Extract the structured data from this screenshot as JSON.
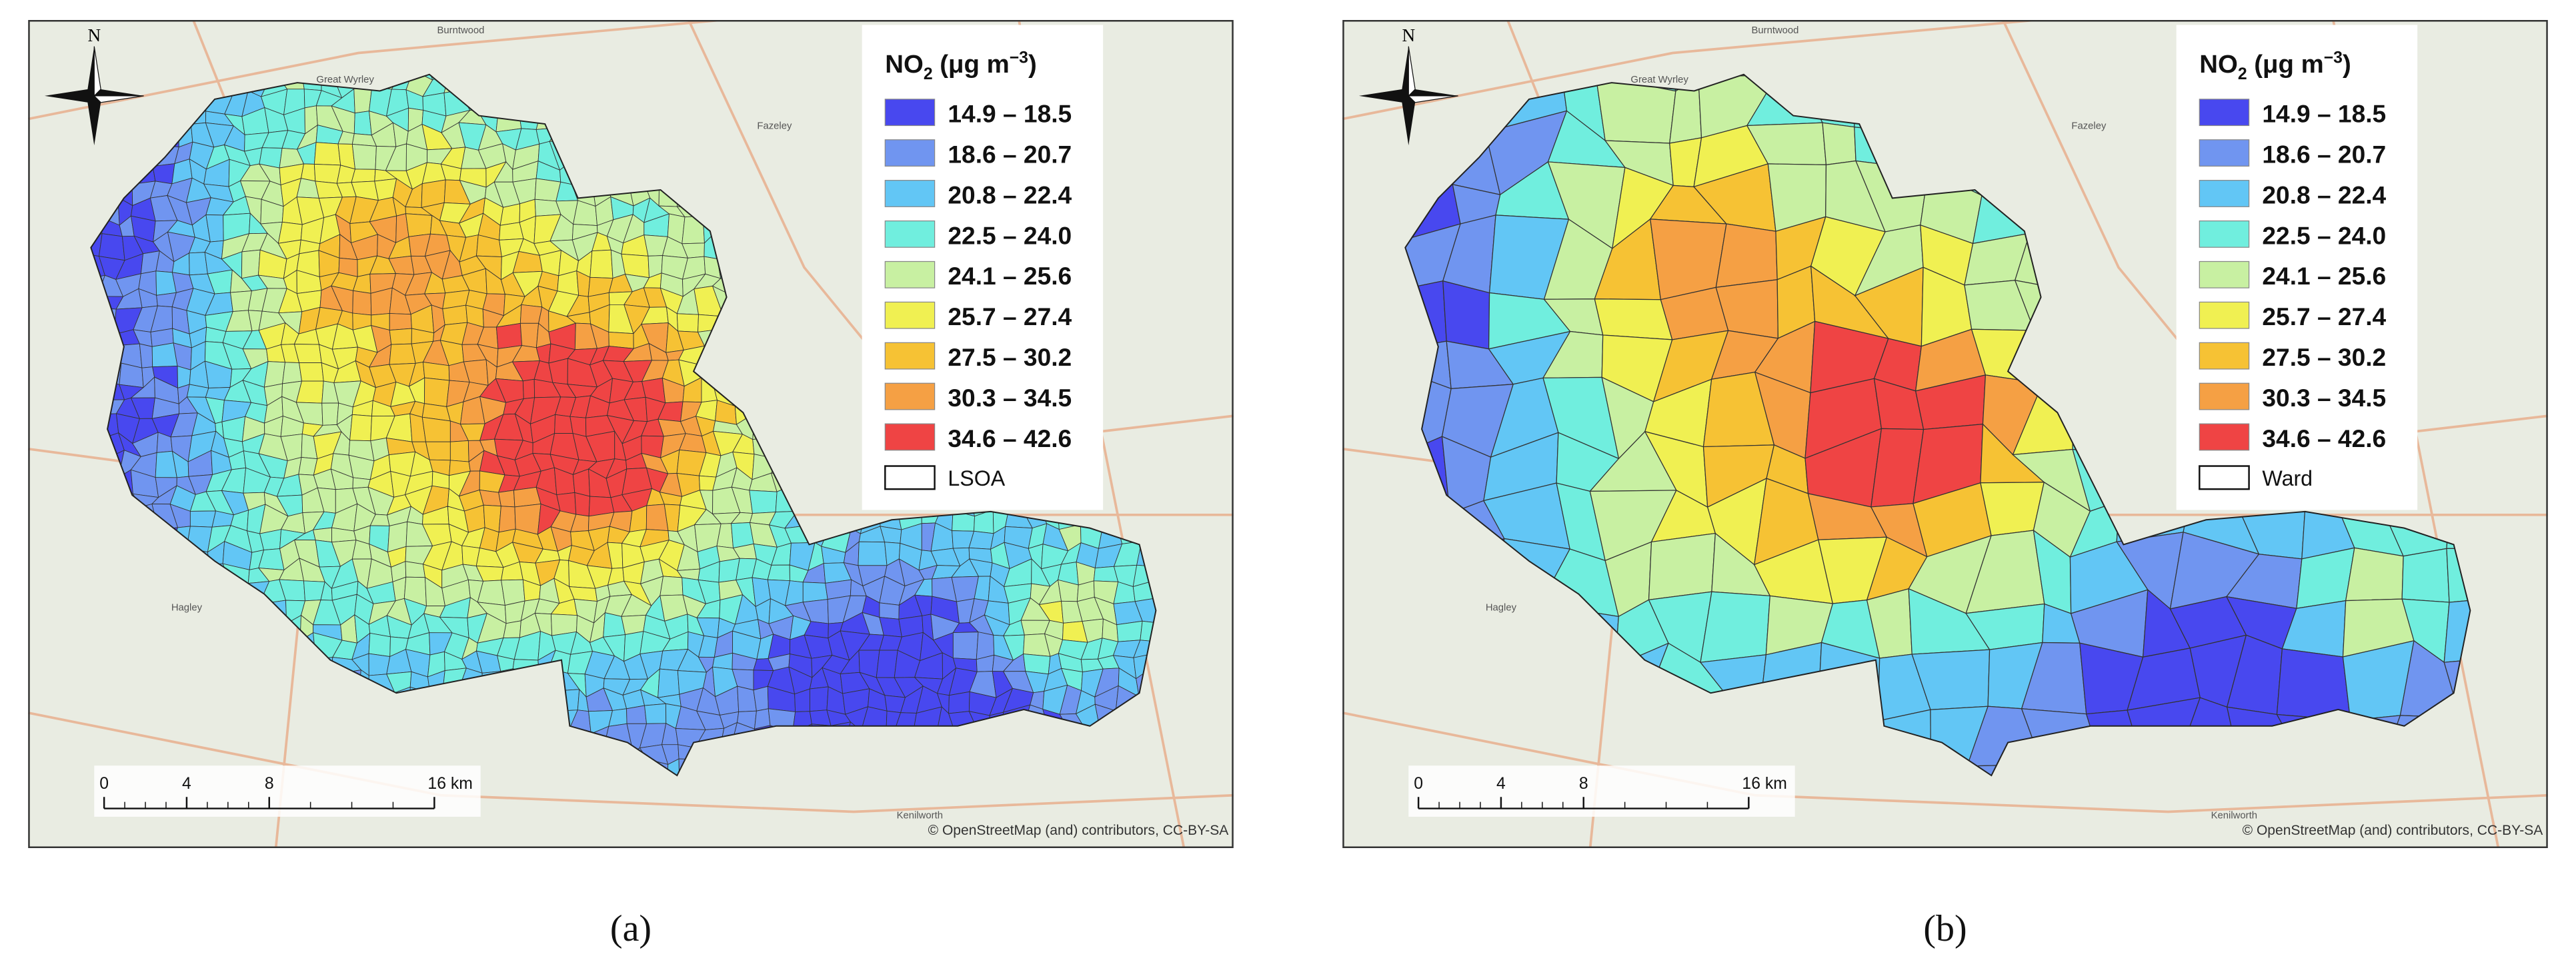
{
  "panels": [
    {
      "caption": "(a)",
      "legend": {
        "title": {
          "main": "NO",
          "sub": "2",
          "unit": " (μg m",
          "sup": "−3",
          "close": ")"
        },
        "classes": [
          {
            "label": "14.9 – 18.5",
            "color": "#4848ef"
          },
          {
            "label": "18.6 – 20.7",
            "color": "#7095f0"
          },
          {
            "label": "20.8 – 22.4",
            "color": "#62c6f5"
          },
          {
            "label": "22.5 – 24.0",
            "color": "#70eede"
          },
          {
            "label": "24.1 – 25.6",
            "color": "#c8f0a2"
          },
          {
            "label": "25.7 – 27.4",
            "color": "#f0f052"
          },
          {
            "label": "27.5 – 30.2",
            "color": "#f6c234"
          },
          {
            "label": "30.3 – 34.5",
            "color": "#f5a044"
          },
          {
            "label": "34.6 – 42.6",
            "color": "#ef4444"
          }
        ],
        "boundary": "LSOA"
      },
      "scale_bar": {
        "ticks": [
          0,
          4,
          8,
          {
            "value": 16,
            "label": "16 km"
          }
        ]
      },
      "north": "N",
      "attribution": "© OpenStreetMap (and) contributors, CC-BY-SA",
      "place_names": [
        "Burntwood",
        "Great Wyrley",
        "Fazeley",
        "Hagley",
        "Kenilworth"
      ]
    },
    {
      "caption": "(b)",
      "legend": {
        "title": {
          "main": "NO",
          "sub": "2",
          "unit": " (μg m",
          "sup": "−3",
          "close": ")"
        },
        "classes": [
          {
            "label": "14.9 – 18.5",
            "color": "#4848ef"
          },
          {
            "label": "18.6 – 20.7",
            "color": "#7095f0"
          },
          {
            "label": "20.8 – 22.4",
            "color": "#62c6f5"
          },
          {
            "label": "22.5 – 24.0",
            "color": "#70eede"
          },
          {
            "label": "24.1 – 25.6",
            "color": "#c8f0a2"
          },
          {
            "label": "25.7 – 27.4",
            "color": "#f0f052"
          },
          {
            "label": "27.5 – 30.2",
            "color": "#f6c234"
          },
          {
            "label": "30.3 – 34.5",
            "color": "#f5a044"
          },
          {
            "label": "34.6 – 42.6",
            "color": "#ef4444"
          }
        ],
        "boundary": "Ward"
      },
      "scale_bar": {
        "ticks": [
          0,
          4,
          8,
          {
            "value": 16,
            "label": "16 km"
          }
        ]
      },
      "north": "N",
      "attribution": "© OpenStreetMap (and) contributors, CC-BY-SA",
      "place_names": [
        "Burntwood",
        "Great Wyrley",
        "Fazeley",
        "Hagley",
        "Kenilworth"
      ]
    }
  ]
}
